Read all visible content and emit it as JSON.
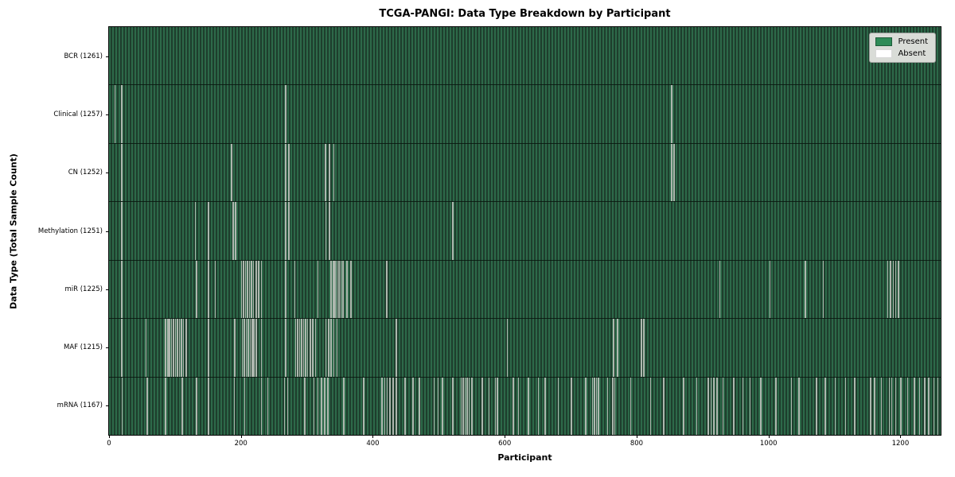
{
  "chart_data": {
    "type": "heatmap",
    "title": "TCGA-PANGI: Data Type Breakdown by Participant",
    "xlabel": "Participant",
    "ylabel": "Data Type (Total Sample Count)",
    "xlim": [
      0,
      1261
    ],
    "xticks": [
      0,
      200,
      400,
      600,
      800,
      1000,
      1200
    ],
    "grid": false,
    "legend_position": "upper right",
    "legend": [
      {
        "label": "Present",
        "color": "#2e8b57",
        "border": "#1e5c39"
      },
      {
        "label": "Absent",
        "color": "#ffffff",
        "border": "#d8d8d8"
      }
    ],
    "colors": {
      "present_fill": "#2e8b57",
      "present_stripe_light": "#2d6949",
      "present_stripe_dark": "#1e3e2d",
      "absent_fill": "#ffffff",
      "absent_render": "#adb7ae",
      "axis": "#000000"
    },
    "rows": [
      {
        "name": "bcr",
        "label": "BCR (1261)",
        "data_type": "BCR",
        "total": 1261,
        "absent": []
      },
      {
        "name": "clinical",
        "label": "Clinical (1257)",
        "data_type": "Clinical",
        "total": 1257,
        "absent": [
          8,
          18,
          267,
          852
        ]
      },
      {
        "name": "cn",
        "label": "CN (1252)",
        "data_type": "CN",
        "total": 1252,
        "absent": [
          18,
          185,
          267,
          272,
          327,
          333,
          340,
          852,
          856
        ]
      },
      {
        "name": "methylation",
        "label": "Methylation (1251)",
        "data_type": "Methylation",
        "total": 1251,
        "absent": [
          18,
          130,
          150,
          187,
          191,
          267,
          272,
          328,
          333,
          520
        ]
      },
      {
        "name": "mir",
        "label": "miR (1225)",
        "data_type": "miR",
        "total": 1225,
        "absent": [
          18,
          132,
          150,
          160,
          200,
          203,
          206,
          209,
          212,
          215,
          218,
          222,
          226,
          230,
          267,
          281,
          316,
          336,
          339,
          342,
          345,
          348,
          351,
          354,
          360,
          366,
          420,
          925,
          1001,
          1055,
          1082,
          1180,
          1184,
          1188,
          1192,
          1196
        ]
      },
      {
        "name": "maf",
        "label": "MAF (1215)",
        "data_type": "MAF",
        "total": 1215,
        "absent": [
          18,
          55,
          85,
          88,
          91,
          94,
          97,
          100,
          103,
          106,
          109,
          112,
          116,
          150,
          190,
          201,
          204,
          207,
          210,
          213,
          216,
          219,
          222,
          230,
          267,
          282,
          285,
          288,
          291,
          294,
          297,
          300,
          304,
          308,
          312,
          328,
          332,
          336,
          340,
          345,
          435,
          603,
          764,
          770,
          806,
          810
        ]
      },
      {
        "name": "mrna",
        "label": "mRNA (1167)",
        "data_type": "mRNA",
        "total": 1167,
        "absent": [
          19,
          57,
          85,
          110,
          132,
          150,
          189,
          205,
          230,
          240,
          265,
          270,
          296,
          310,
          316,
          321,
          326,
          331,
          355,
          385,
          413,
          417,
          421,
          425,
          430,
          435,
          448,
          460,
          470,
          492,
          498,
          505,
          520,
          533,
          536,
          539,
          542,
          545,
          549,
          565,
          575,
          585,
          588,
          612,
          620,
          635,
          650,
          660,
          680,
          700,
          722,
          732,
          735,
          738,
          741,
          755,
          763,
          766,
          790,
          820,
          840,
          870,
          890,
          908,
          912,
          916,
          921,
          930,
          946,
          960,
          971,
          987,
          1010,
          1034,
          1045,
          1072,
          1085,
          1100,
          1116,
          1130,
          1154,
          1160,
          1170,
          1182,
          1186,
          1192,
          1200,
          1210,
          1220,
          1228,
          1236,
          1242,
          1250,
          1256
        ]
      }
    ]
  }
}
